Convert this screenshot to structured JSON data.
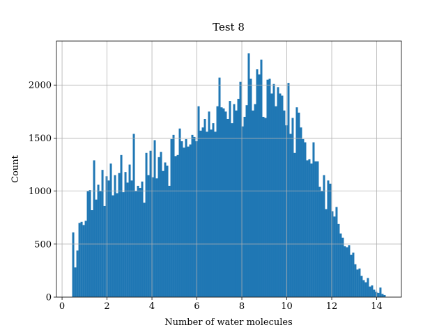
{
  "chart_data": {
    "type": "histogram",
    "title": "Test 8",
    "x_label": "Number of water molecules",
    "y_label": "Count",
    "color": "#1f77b4",
    "grid": true,
    "bins": [
      0.45,
      0.543,
      0.636,
      0.729,
      0.822,
      0.915,
      1.008,
      1.101,
      1.194,
      1.287,
      1.38,
      1.473,
      1.566,
      1.659,
      1.752,
      1.845,
      1.938,
      2.031,
      2.124,
      2.217,
      2.31,
      2.403,
      2.496,
      2.589,
      2.682,
      2.775,
      2.868,
      2.961,
      3.054,
      3.147,
      3.24,
      3.333,
      3.426,
      3.519,
      3.612,
      3.705,
      3.798,
      3.891,
      3.984,
      4.077,
      4.17,
      4.263,
      4.356,
      4.449,
      4.542,
      4.635,
      4.728,
      4.821,
      4.914,
      5.007,
      5.1,
      5.193,
      5.286,
      5.379,
      5.472,
      5.565,
      5.658,
      5.751,
      5.844,
      5.937,
      6.03,
      6.123,
      6.216,
      6.309,
      6.402,
      6.495,
      6.588,
      6.681,
      6.774,
      6.867,
      6.96,
      7.053,
      7.146,
      7.239,
      7.332,
      7.425,
      7.518,
      7.611,
      7.704,
      7.797,
      7.89,
      7.983,
      8.076,
      8.169,
      8.262,
      8.355,
      8.448,
      8.541,
      8.634,
      8.727,
      8.82,
      8.913,
      9.006,
      9.099,
      9.192,
      9.285,
      9.378,
      9.471,
      9.564,
      9.657,
      9.75,
      9.843,
      9.936,
      10.029,
      10.122,
      10.215,
      10.308,
      10.401,
      10.494,
      10.587,
      10.68,
      10.773,
      10.866,
      10.959,
      11.052,
      11.145,
      11.238,
      11.331,
      11.424,
      11.517,
      11.61,
      11.703,
      11.796,
      11.889,
      11.982,
      12.075,
      12.168,
      12.261,
      12.354,
      12.447,
      12.54,
      12.633,
      12.726,
      12.819,
      12.912,
      13.005,
      13.098,
      13.191,
      13.284,
      13.377,
      13.47,
      13.563,
      13.656,
      13.749,
      13.842,
      13.935,
      14.028,
      14.121,
      14.214,
      14.307,
      14.4
    ],
    "values": [
      610,
      280,
      440,
      700,
      710,
      680,
      720,
      1000,
      1010,
      820,
      1290,
      920,
      1060,
      1000,
      1200,
      860,
      1140,
      1100,
      1260,
      960,
      1150,
      980,
      1170,
      1340,
      990,
      1180,
      1080,
      1250,
      1100,
      1540,
      1000,
      1050,
      1030,
      1090,
      890,
      1360,
      1150,
      1380,
      1130,
      1480,
      1120,
      1320,
      1370,
      1190,
      1270,
      1240,
      1050,
      1490,
      1530,
      1330,
      1340,
      1590,
      1470,
      1410,
      1490,
      1420,
      1440,
      1530,
      1510,
      1470,
      1800,
      1570,
      1600,
      1680,
      1560,
      1750,
      1580,
      1640,
      1560,
      1800,
      2070,
      1790,
      1780,
      1750,
      1680,
      1850,
      1640,
      1820,
      1760,
      1870,
      2030,
      1610,
      1700,
      1810,
      2300,
      2060,
      1760,
      1820,
      2150,
      2100,
      2240,
      1700,
      1690,
      2050,
      2060,
      1920,
      2010,
      1800,
      1980,
      1920,
      1900,
      1760,
      1620,
      2020,
      1540,
      1690,
      1360,
      1790,
      1740,
      1600,
      1490,
      1460,
      1290,
      1300,
      1260,
      1460,
      1280,
      1280,
      1040,
      1000,
      1150,
      830,
      1100,
      1070,
      810,
      760,
      850,
      690,
      600,
      560,
      480,
      470,
      490,
      400,
      420,
      310,
      260,
      270,
      200,
      160,
      140,
      180,
      100,
      110,
      70,
      50,
      40,
      90,
      30,
      20
    ],
    "xlim": [
      -0.25,
      15.1
    ],
    "ylim": [
      0,
      2415
    ],
    "xticks": [
      0,
      2,
      4,
      6,
      8,
      10,
      12,
      14
    ],
    "yticks": [
      0,
      500,
      1000,
      1500,
      2000
    ]
  }
}
